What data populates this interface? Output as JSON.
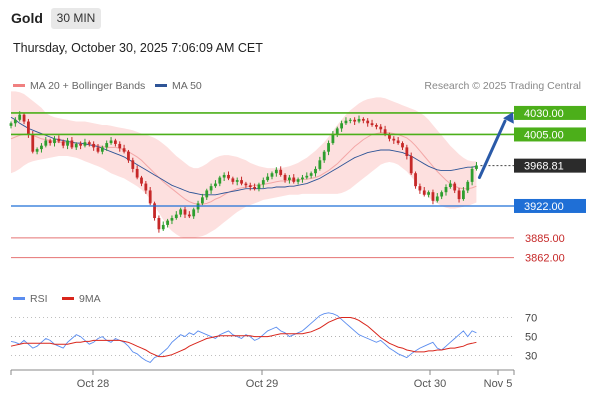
{
  "header": {
    "instrument": "Gold",
    "timeframe": "30 MIN",
    "datetime": "Thursday, October 30, 2025 7:06:09 AM CET"
  },
  "legend": {
    "ma20": {
      "label": "MA 20 + Bollinger Bands",
      "color": "#f08080"
    },
    "ma50": {
      "label": "MA 50",
      "color": "#2f5597"
    },
    "copyright": "Research © 2025 Trading Central"
  },
  "rsi_legend": {
    "rsi": {
      "label": "RSI",
      "color": "#5b8def"
    },
    "ma9": {
      "label": "9MA",
      "color": "#d9261c"
    }
  },
  "colors": {
    "up": "#2e9e2e",
    "down": "#c62828",
    "resistance": "#4caf1a",
    "support": "#1f6fd6",
    "target": "#e57373",
    "band": "#fde0df",
    "arrow": "#2a5aa8",
    "price_tag": "#2b2b2b"
  },
  "chart_data": [
    {
      "type": "candlestick",
      "x_ticks": [
        "Oct 28",
        "Oct 29",
        "Oct 30",
        "Nov 5"
      ],
      "ylim": [
        3850,
        4045
      ],
      "levels": [
        {
          "value": 4030.0,
          "label": "4030.00",
          "kind": "resistance"
        },
        {
          "value": 4005.0,
          "label": "4005.00",
          "kind": "resistance"
        },
        {
          "value": 3968.81,
          "label": "3968.81",
          "kind": "last-price"
        },
        {
          "value": 3922.0,
          "label": "3922.00",
          "kind": "support"
        },
        {
          "value": 3885.0,
          "label": "3885.00",
          "kind": "target"
        },
        {
          "value": 3862.0,
          "label": "3862.00",
          "kind": "target"
        }
      ],
      "close": [
        4018,
        4022,
        4028,
        4020,
        4005,
        3985,
        3988,
        3992,
        3998,
        3995,
        4000,
        3997,
        3992,
        3998,
        3990,
        3994,
        3992,
        3996,
        3994,
        3990,
        3985,
        3990,
        3995,
        3998,
        3994,
        3989,
        3985,
        3975,
        3965,
        3955,
        3948,
        3940,
        3925,
        3908,
        3895,
        3900,
        3905,
        3908,
        3912,
        3918,
        3912,
        3910,
        3918,
        3925,
        3932,
        3940,
        3945,
        3948,
        3955,
        3958,
        3954,
        3950,
        3952,
        3948,
        3946,
        3944,
        3942,
        3947,
        3952,
        3956,
        3960,
        3964,
        3958,
        3952,
        3955,
        3950,
        3953,
        3955,
        3957,
        3960,
        3965,
        3975,
        3985,
        3995,
        4005,
        4012,
        4018,
        4021,
        4022,
        4020,
        4023,
        4021,
        4018,
        4016,
        4014,
        4011,
        4005,
        4000,
        3998,
        3995,
        3990,
        3980,
        3960,
        3945,
        3940,
        3935,
        3938,
        3928,
        3933,
        3938,
        3944,
        3948,
        3940,
        3930,
        3940,
        3950,
        3965,
        3969
      ],
      "ma20": [
        4000,
        4002,
        4004,
        4005,
        4006,
        4004,
        4002,
        4000,
        3999,
        3998,
        3997,
        3996,
        3996,
        3995,
        3995,
        3995,
        3994,
        3994,
        3994,
        3993,
        3992,
        3991,
        3990,
        3990,
        3990,
        3989,
        3987,
        3985,
        3982,
        3979,
        3975,
        3970,
        3965,
        3960,
        3955,
        3950,
        3946,
        3942,
        3938,
        3934,
        3930,
        3927,
        3925,
        3924,
        3924,
        3925,
        3927,
        3930,
        3932,
        3935,
        3938,
        3940,
        3942,
        3943,
        3944,
        3945,
        3946,
        3946,
        3947,
        3948,
        3949,
        3950,
        3951,
        3951,
        3952,
        3952,
        3952,
        3953,
        3953,
        3954,
        3955,
        3957,
        3960,
        3963,
        3967,
        3971,
        3976,
        3981,
        3986,
        3991,
        3995,
        3999,
        4002,
        4005,
        4006,
        4007,
        4007,
        4007,
        4006,
        4005,
        4003,
        4001,
        3997,
        3992,
        3986,
        3980,
        3974,
        3968,
        3962,
        3957,
        3952,
        3948,
        3945,
        3943,
        3942,
        3942,
        3943,
        3945
      ],
      "ma50": [
        4025,
        4022,
        4018,
        4015,
        4012,
        4010,
        4008,
        4006,
        4004,
        4002,
        4000,
        3999,
        3998,
        3997,
        3996,
        3995,
        3995,
        3994,
        3993,
        3992,
        3991,
        3989,
        3987,
        3985,
        3983,
        3981,
        3979,
        3976,
        3973,
        3970,
        3967,
        3964,
        3961,
        3958,
        3955,
        3952,
        3949,
        3946,
        3944,
        3942,
        3940,
        3938,
        3937,
        3936,
        3935,
        3935,
        3935,
        3935,
        3936,
        3937,
        3938,
        3939,
        3940,
        3941,
        3942,
        3942,
        3942,
        3942,
        3942,
        3943,
        3943,
        3944,
        3944,
        3944,
        3945,
        3945,
        3946,
        3947,
        3948,
        3950,
        3952,
        3954,
        3957,
        3960,
        3963,
        3966,
        3969,
        3972,
        3975,
        3978,
        3980,
        3982,
        3984,
        3985,
        3986,
        3987,
        3987,
        3987,
        3986,
        3985,
        3984,
        3982,
        3980,
        3977,
        3974,
        3971,
        3968,
        3966,
        3964,
        3963,
        3963,
        3963,
        3964,
        3965,
        3966,
        3967,
        3967,
        3968
      ],
      "bb_upper": [
        4055,
        4055,
        4054,
        4052,
        4048,
        4044,
        4040,
        4036,
        4030,
        4027,
        4025,
        4024,
        4023,
        4022,
        4021,
        4020,
        4020,
        4020,
        4019,
        4018,
        4017,
        4016,
        4016,
        4015,
        4014,
        4013,
        4012,
        4011,
        4010,
        4008,
        4006,
        4005,
        4003,
        4001,
        3998,
        3994,
        3990,
        3985,
        3980,
        3976,
        3972,
        3968,
        3966,
        3966,
        3968,
        3971,
        3975,
        3978,
        3980,
        3981,
        3981,
        3980,
        3979,
        3977,
        3975,
        3972,
        3970,
        3968,
        3967,
        3966,
        3966,
        3966,
        3966,
        3967,
        3968,
        3970,
        3972,
        3975,
        3978,
        3982,
        3986,
        3991,
        3996,
        4002,
        4009,
        4016,
        4022,
        4028,
        4033,
        4037,
        4041,
        4044,
        4046,
        4047,
        4048,
        4048,
        4047,
        4045,
        4043,
        4041,
        4039,
        4037,
        4035,
        4033,
        4030,
        4027,
        4022,
        4016,
        4010,
        4004,
        3998,
        3992,
        3987,
        3982,
        3978,
        3975,
        3974,
        3974
      ],
      "bb_lower": [
        3960,
        3962,
        3965,
        3969,
        3972,
        3974,
        3975,
        3976,
        3977,
        3978,
        3979,
        3980,
        3980,
        3980,
        3979,
        3978,
        3976,
        3974,
        3972,
        3970,
        3968,
        3966,
        3963,
        3960,
        3958,
        3956,
        3954,
        3951,
        3948,
        3945,
        3941,
        3936,
        3930,
        3922,
        3914,
        3906,
        3898,
        3893,
        3889,
        3886,
        3885,
        3885,
        3885,
        3886,
        3887,
        3889,
        3892,
        3895,
        3899,
        3903,
        3907,
        3911,
        3915,
        3918,
        3921,
        3923,
        3925,
        3927,
        3929,
        3930,
        3931,
        3932,
        3933,
        3934,
        3935,
        3935,
        3935,
        3936,
        3936,
        3936,
        3936,
        3936,
        3936,
        3936,
        3936,
        3936,
        3937,
        3939,
        3942,
        3946,
        3950,
        3954,
        3958,
        3962,
        3966,
        3970,
        3972,
        3973,
        3972,
        3970,
        3966,
        3962,
        3956,
        3950,
        3944,
        3938,
        3932,
        3928,
        3925,
        3922,
        3920,
        3919,
        3919,
        3920,
        3921,
        3922,
        3924,
        3926
      ]
    },
    {
      "type": "line",
      "title": "RSI",
      "x_ticks": [
        "Oct 28",
        "Oct 29",
        "Oct 30",
        "Nov 5"
      ],
      "y_ticks": [
        30,
        50,
        70
      ],
      "ylim": [
        15,
        80
      ],
      "series": [
        {
          "name": "RSI",
          "values": [
            45,
            44,
            42,
            46,
            42,
            38,
            40,
            44,
            48,
            46,
            42,
            40,
            38,
            44,
            48,
            52,
            50,
            46,
            42,
            44,
            48,
            50,
            46,
            44,
            48,
            46,
            44,
            40,
            34,
            32,
            28,
            25,
            23,
            28,
            30,
            34,
            38,
            44,
            48,
            52,
            50,
            54,
            52,
            56,
            54,
            52,
            50,
            48,
            52,
            54,
            56,
            52,
            50,
            48,
            52,
            50,
            46,
            48,
            52,
            56,
            58,
            60,
            56,
            54,
            50,
            52,
            54,
            56,
            60,
            64,
            68,
            72,
            74,
            75,
            74,
            72,
            68,
            64,
            60,
            56,
            52,
            50,
            48,
            46,
            44,
            46,
            42,
            38,
            35,
            32,
            30,
            28,
            32,
            35,
            38,
            40,
            42,
            44,
            38,
            36,
            40,
            44,
            48,
            52,
            56,
            50,
            56,
            54
          ]
        },
        {
          "name": "9MA",
          "values": [
            40,
            41,
            42,
            43,
            43,
            43,
            43,
            43,
            43,
            43,
            42,
            42,
            42,
            42,
            43,
            44,
            44,
            45,
            45,
            46,
            46,
            46,
            46,
            46,
            46,
            46,
            45,
            44,
            42,
            40,
            38,
            36,
            33,
            31,
            29,
            29,
            30,
            31,
            33,
            35,
            37,
            40,
            42,
            44,
            46,
            48,
            49,
            50,
            51,
            51,
            51,
            51,
            51,
            51,
            51,
            51,
            50,
            50,
            50,
            50,
            51,
            52,
            53,
            53,
            53,
            53,
            53,
            53,
            54,
            55,
            57,
            59,
            62,
            65,
            67,
            69,
            70,
            70,
            70,
            69,
            67,
            64,
            61,
            57,
            53,
            49,
            46,
            43,
            41,
            39,
            38,
            36,
            35,
            34,
            34,
            34,
            35,
            35,
            36,
            36,
            37,
            38,
            38,
            39,
            40,
            42,
            43,
            44
          ]
        }
      ]
    }
  ]
}
